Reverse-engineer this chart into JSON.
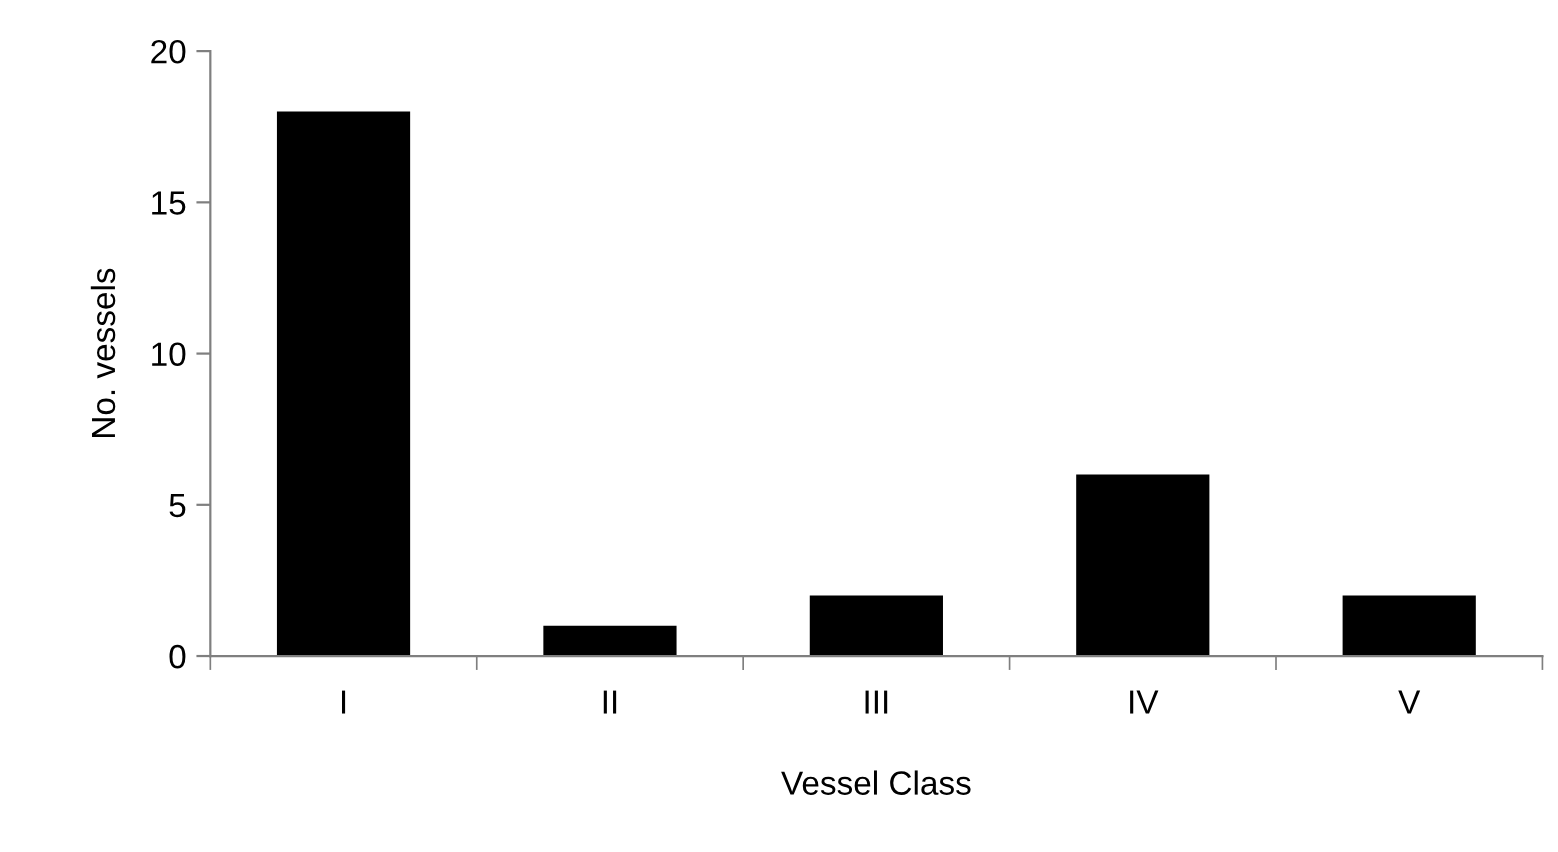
{
  "chart_data": {
    "type": "bar",
    "xlabel": "Vessel Class",
    "ylabel": "No. vessels",
    "categories": [
      "I",
      "II",
      "III",
      "IV",
      "V"
    ],
    "values": [
      18,
      1,
      2,
      6,
      2
    ],
    "color": "#000000",
    "ylim": [
      0,
      20
    ],
    "yticks": [
      0,
      5,
      10,
      15,
      20
    ],
    "grid": false,
    "legend": false
  }
}
